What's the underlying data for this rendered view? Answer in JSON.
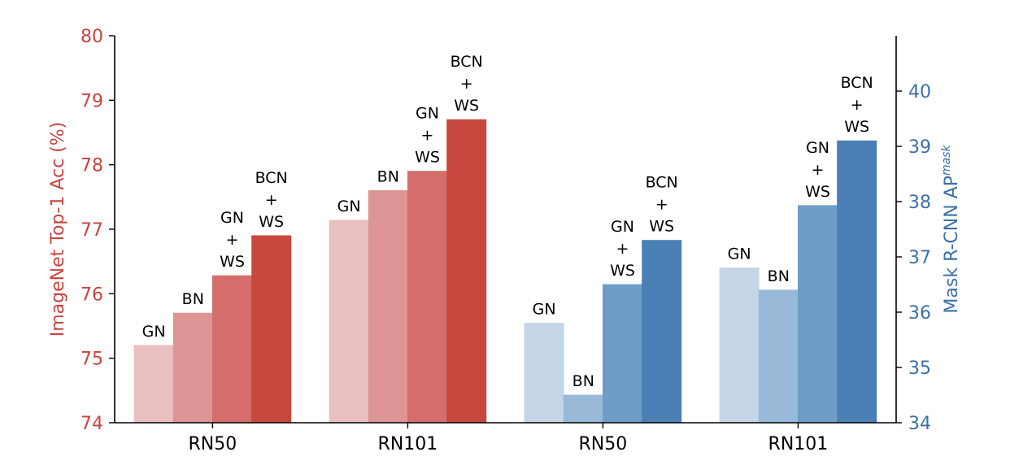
{
  "chart_data": {
    "type": "bar",
    "groups": [
      {
        "category": "RN50",
        "axis": "left",
        "bars": [
          {
            "method": "GN",
            "label_lines": [
              "GN"
            ],
            "value": 75.2
          },
          {
            "method": "BN",
            "label_lines": [
              "BN"
            ],
            "value": 75.7
          },
          {
            "method": "GN+WS",
            "label_lines": [
              "GN",
              "+",
              "WS"
            ],
            "value": 76.28
          },
          {
            "method": "BCN+WS",
            "label_lines": [
              "BCN",
              "+",
              "WS"
            ],
            "value": 76.9
          }
        ]
      },
      {
        "category": "RN101",
        "axis": "left",
        "bars": [
          {
            "method": "GN",
            "label_lines": [
              "GN"
            ],
            "value": 77.14
          },
          {
            "method": "BN",
            "label_lines": [
              "BN"
            ],
            "value": 77.6
          },
          {
            "method": "GN+WS",
            "label_lines": [
              "GN",
              "+",
              "WS"
            ],
            "value": 77.9
          },
          {
            "method": "BCN+WS",
            "label_lines": [
              "BCN",
              "+",
              "WS"
            ],
            "value": 78.7
          }
        ]
      },
      {
        "category": "RN50",
        "axis": "right",
        "bars": [
          {
            "method": "GN",
            "label_lines": [
              "GN"
            ],
            "value": 35.8
          },
          {
            "method": "BN",
            "label_lines": [
              "BN"
            ],
            "value": 34.5
          },
          {
            "method": "GN+WS",
            "label_lines": [
              "GN",
              "+",
              "WS"
            ],
            "value": 36.5
          },
          {
            "method": "BCN+WS",
            "label_lines": [
              "BCN",
              "+",
              "WS"
            ],
            "value": 37.3
          }
        ]
      },
      {
        "category": "RN101",
        "axis": "right",
        "bars": [
          {
            "method": "GN",
            "label_lines": [
              "GN"
            ],
            "value": 36.8
          },
          {
            "method": "BN",
            "label_lines": [
              "BN"
            ],
            "value": 36.4
          },
          {
            "method": "GN+WS",
            "label_lines": [
              "GN",
              "+",
              "WS"
            ],
            "value": 37.93
          },
          {
            "method": "BCN+WS",
            "label_lines": [
              "BCN",
              "+",
              "WS"
            ],
            "value": 39.1
          }
        ]
      }
    ],
    "left_axis": {
      "label": "ImageNet Top-1 Acc (%)",
      "ylim": [
        74,
        80
      ],
      "ticks": [
        "74",
        "75",
        "76",
        "77",
        "78",
        "79",
        "80"
      ],
      "color": "#c8443f"
    },
    "right_axis": {
      "label": "Mask R-CNN AP",
      "label_superscript": "mask",
      "ylim": [
        34,
        41
      ],
      "ticks": [
        "34",
        "35",
        "36",
        "37",
        "38",
        "39",
        "40"
      ],
      "color": "#3b70a8"
    },
    "colors": {
      "left": [
        "#e8c0bf",
        "#dc9594",
        "#d46d6b",
        "#c8473f"
      ],
      "right": [
        "#c3d5e7",
        "#98b9d7",
        "#6f9dc8",
        "#4a80b5"
      ]
    },
    "grid": false,
    "legend": "none"
  }
}
